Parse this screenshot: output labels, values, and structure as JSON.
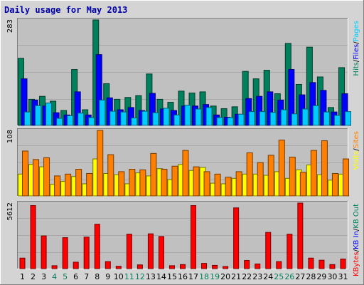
{
  "chart_data": {
    "title": "Daily usage for May 2013",
    "type": "bar",
    "days": [
      "1",
      "2",
      "3",
      "4",
      "5",
      "6",
      "7",
      "8",
      "9",
      "10",
      "11",
      "12",
      "13",
      "14",
      "15",
      "16",
      "17",
      "18",
      "19",
      "20",
      "21",
      "22",
      "23",
      "24",
      "25",
      "26",
      "27",
      "28",
      "29",
      "30",
      "31"
    ],
    "weekend_days": [
      "4",
      "5",
      "11",
      "12",
      "18",
      "19",
      "25",
      "26"
    ],
    "panels": [
      {
        "id": "hits",
        "ymax_label": "283",
        "ymax": 283,
        "legend": [
          {
            "text": "Hits",
            "color": "#00805c"
          },
          {
            "text": "/",
            "color": "#000000"
          },
          {
            "text": "Files",
            "color": "#0000ff"
          },
          {
            "text": "/",
            "color": "#000000"
          },
          {
            "text": "Pages",
            "color": "#00ccff"
          }
        ],
        "series": [
          {
            "name": "Hits",
            "color": "#00805c",
            "values": [
              180,
              70,
              78,
              65,
              40,
              150,
              42,
              283,
              112,
              70,
              75,
              80,
              138,
              70,
              62,
              92,
              87,
              90,
              52,
              45,
              50,
              145,
              125,
              148,
              85,
              220,
              110,
              210,
              130,
              48,
              155
            ]
          },
          {
            "name": "Files",
            "color": "#0000ff",
            "values": [
              125,
              68,
              52,
              34,
              28,
              90,
              28,
              190,
              74,
              42,
              48,
              40,
              86,
              44,
              40,
              52,
              52,
              56,
              28,
              22,
              30,
              72,
              78,
              90,
              68,
              150,
              82,
              115,
              94,
              36,
              85
            ]
          },
          {
            "name": "Pages",
            "color": "#00ccff",
            "values": [
              36,
              53,
              60,
              19,
              26,
              33,
              21,
              68,
              38,
              36,
              20,
              38,
              34,
              46,
              28,
              54,
              44,
              48,
              21,
              21,
              30,
              37,
              37,
              35,
              42,
              31,
              44,
              53,
              36,
              27,
              37
            ]
          }
        ]
      },
      {
        "id": "visits",
        "ymax_label": "108",
        "ymax": 108,
        "legend": [
          {
            "text": "Visits",
            "color": "#ffff00"
          },
          {
            "text": "/",
            "color": "#000000"
          },
          {
            "text": "Sites",
            "color": "#ff8000"
          }
        ],
        "series": [
          {
            "name": "Visits",
            "color": "#ffff00",
            "values": [
              36,
              52,
              48,
              19,
              24,
              32,
              20,
              61,
              37,
              35,
              20,
              38,
              33,
              45,
              27,
              52,
              42,
              47,
              21,
              20,
              29,
              36,
              36,
              34,
              40,
              29,
              43,
              51,
              35,
              26,
              36
            ]
          },
          {
            "name": "Sites",
            "color": "#ff8000",
            "values": [
              74,
              60,
              63,
              33,
              36,
              44,
              37,
              108,
              68,
              40,
              44,
              43,
              70,
              44,
              49,
              75,
              48,
              40,
              36,
              31,
              40,
              71,
              55,
              67,
              92,
              64,
              39,
              75,
              91,
              37,
              61
            ]
          }
        ]
      },
      {
        "id": "kbytes",
        "ymax_label": "5612",
        "ymax": 5612,
        "legend": [
          {
            "text": "KBytes",
            "color": "#ff0000"
          },
          {
            "text": "/",
            "color": "#000000"
          },
          {
            "text": "KB In",
            "color": "#0000ff"
          },
          {
            "text": "/",
            "color": "#000000"
          },
          {
            "text": "KB Out",
            "color": "#00805c"
          }
        ],
        "series": [
          {
            "name": "KBytes",
            "color": "#ff0000",
            "values": [
              900,
              5400,
              2800,
              250,
              2650,
              550,
              2700,
              3800,
              600,
              200,
              2950,
              320,
              2980,
              2750,
              250,
              350,
              5400,
              450,
              280,
              180,
              5200,
              700,
              400,
              3100,
              600,
              2950,
              5612,
              900,
              720,
              350,
              820
            ]
          }
        ]
      }
    ]
  }
}
